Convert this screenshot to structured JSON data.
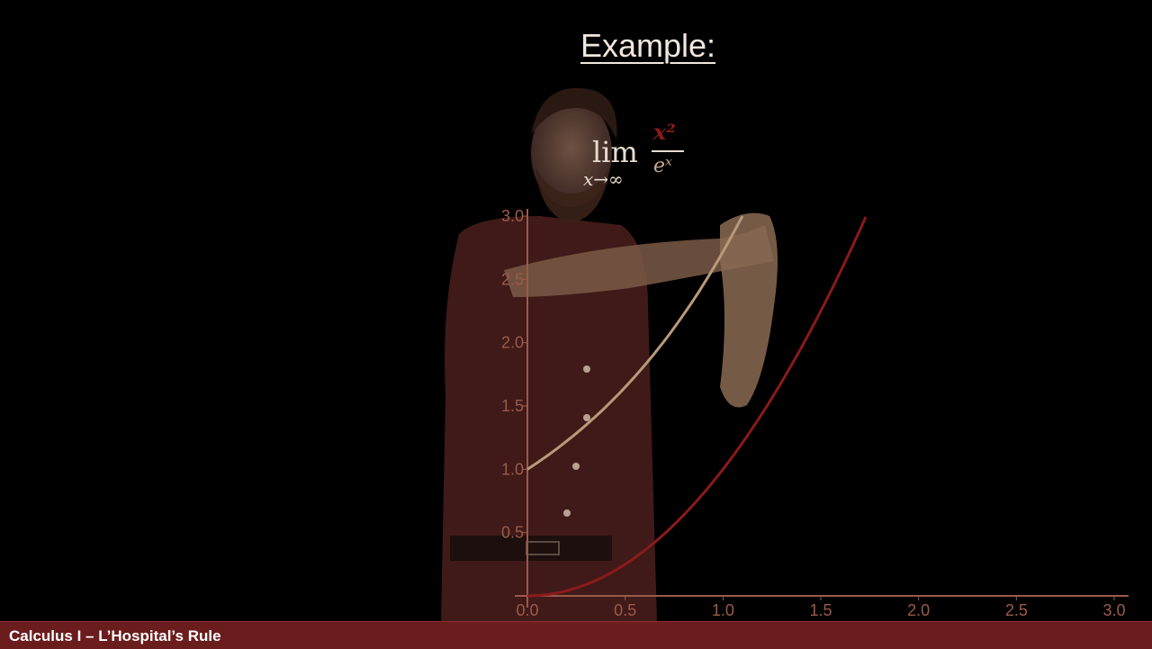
{
  "slide": {
    "title": "Example:",
    "footer": "Calculus I – L’Hospital’s Rule"
  },
  "formula": {
    "lim": "lim",
    "subscript": "x→∞",
    "numerator": "x²",
    "denominator": "eˣ"
  },
  "colors": {
    "background": "#000000",
    "footer": "#6b1c1c",
    "axis": "#9b5a4a",
    "curve_exp": "#b89a7a",
    "curve_sq": "#8b1a1a"
  },
  "chart_data": {
    "type": "line",
    "xlim": [
      0,
      3
    ],
    "ylim": [
      0,
      3
    ],
    "xticks": [
      "0.0",
      "0.5",
      "1.0",
      "1.5",
      "2.0",
      "2.5",
      "3.0"
    ],
    "yticks": [
      "0.5",
      "1.0",
      "1.5",
      "2.0",
      "2.5",
      "3.0"
    ],
    "grid": false,
    "series": [
      {
        "function": "e^x",
        "color": "#b89a7a",
        "x": [
          0.0,
          0.25,
          0.5,
          0.75,
          1.0,
          1.1
        ],
        "y": [
          1.0,
          1.28,
          1.65,
          2.12,
          2.72,
          3.0
        ]
      },
      {
        "function": "x^2",
        "color": "#8b1a1a",
        "x": [
          0.0,
          0.25,
          0.5,
          0.75,
          1.0,
          1.25,
          1.5,
          1.73
        ],
        "y": [
          0.0,
          0.06,
          0.25,
          0.56,
          1.0,
          1.56,
          2.25,
          3.0
        ]
      }
    ]
  }
}
